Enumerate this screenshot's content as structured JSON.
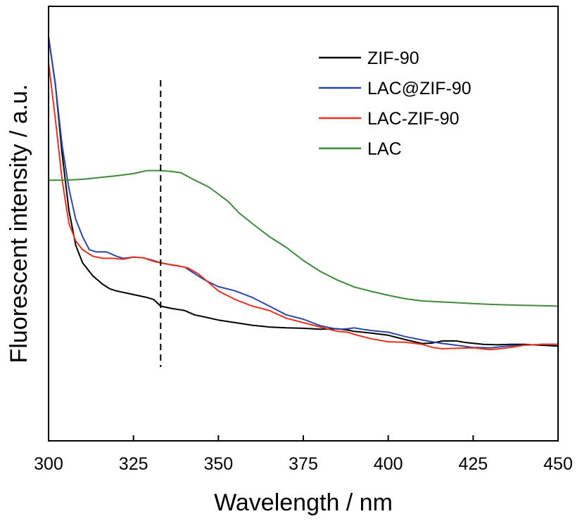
{
  "chart_data": {
    "type": "line",
    "xlabel": "Wavelength / nm",
    "ylabel": "Fluorescent intensity / a.u.",
    "xlim": [
      300,
      450
    ],
    "ylim": [
      0,
      1
    ],
    "x_ticks": [
      300,
      325,
      350,
      375,
      400,
      425,
      450
    ],
    "y_ticks_labeled": false,
    "grid": false,
    "legend_position": "top-right",
    "reference_line": {
      "x": 333,
      "style": "dashed",
      "y_range": [
        0.17,
        0.83
      ]
    },
    "series": [
      {
        "name": "ZIF-90",
        "color": "#000000",
        "points": [
          [
            300,
            0.93
          ],
          [
            302,
            0.82
          ],
          [
            304,
            0.66
          ],
          [
            306,
            0.53
          ],
          [
            308,
            0.45
          ],
          [
            310,
            0.41
          ],
          [
            313,
            0.38
          ],
          [
            316,
            0.36
          ],
          [
            318,
            0.35
          ],
          [
            320,
            0.345
          ],
          [
            323,
            0.34
          ],
          [
            326,
            0.335
          ],
          [
            329,
            0.33
          ],
          [
            331,
            0.325
          ],
          [
            333,
            0.31
          ],
          [
            336,
            0.305
          ],
          [
            340,
            0.3
          ],
          [
            343,
            0.29
          ],
          [
            346,
            0.285
          ],
          [
            350,
            0.278
          ],
          [
            355,
            0.272
          ],
          [
            360,
            0.266
          ],
          [
            365,
            0.262
          ],
          [
            370,
            0.26
          ],
          [
            375,
            0.259
          ],
          [
            380,
            0.257
          ],
          [
            385,
            0.258
          ],
          [
            388,
            0.255
          ],
          [
            390,
            0.252
          ],
          [
            395,
            0.248
          ],
          [
            400,
            0.243
          ],
          [
            405,
            0.233
          ],
          [
            410,
            0.224
          ],
          [
            413,
            0.225
          ],
          [
            416,
            0.23
          ],
          [
            420,
            0.23
          ],
          [
            423,
            0.226
          ],
          [
            428,
            0.222
          ],
          [
            432,
            0.221
          ],
          [
            436,
            0.222
          ],
          [
            440,
            0.222
          ],
          [
            445,
            0.22
          ],
          [
            450,
            0.218
          ]
        ]
      },
      {
        "name": "LAC@ZIF-90",
        "color": "#2c47a8",
        "points": [
          [
            300,
            0.93
          ],
          [
            302,
            0.82
          ],
          [
            304,
            0.68
          ],
          [
            306,
            0.58
          ],
          [
            308,
            0.51
          ],
          [
            310,
            0.47
          ],
          [
            312,
            0.44
          ],
          [
            314,
            0.435
          ],
          [
            317,
            0.435
          ],
          [
            320,
            0.425
          ],
          [
            322,
            0.42
          ],
          [
            325,
            0.423
          ],
          [
            328,
            0.421
          ],
          [
            330,
            0.417
          ],
          [
            333,
            0.41
          ],
          [
            336,
            0.405
          ],
          [
            340,
            0.4
          ],
          [
            343,
            0.385
          ],
          [
            346,
            0.37
          ],
          [
            350,
            0.355
          ],
          [
            355,
            0.345
          ],
          [
            360,
            0.33
          ],
          [
            365,
            0.31
          ],
          [
            370,
            0.29
          ],
          [
            375,
            0.28
          ],
          [
            380,
            0.265
          ],
          [
            385,
            0.257
          ],
          [
            388,
            0.258
          ],
          [
            390,
            0.26
          ],
          [
            393,
            0.256
          ],
          [
            396,
            0.253
          ],
          [
            400,
            0.25
          ],
          [
            405,
            0.24
          ],
          [
            410,
            0.232
          ],
          [
            415,
            0.225
          ],
          [
            420,
            0.22
          ],
          [
            425,
            0.215
          ],
          [
            430,
            0.214
          ],
          [
            435,
            0.218
          ],
          [
            440,
            0.22
          ],
          [
            445,
            0.222
          ],
          [
            450,
            0.222
          ]
        ]
      },
      {
        "name": "LAC-ZIF-90",
        "color": "#e8321f",
        "points": [
          [
            300,
            0.87
          ],
          [
            302,
            0.74
          ],
          [
            304,
            0.6
          ],
          [
            306,
            0.5
          ],
          [
            308,
            0.46
          ],
          [
            310,
            0.44
          ],
          [
            313,
            0.425
          ],
          [
            316,
            0.42
          ],
          [
            319,
            0.42
          ],
          [
            322,
            0.418
          ],
          [
            325,
            0.423
          ],
          [
            328,
            0.421
          ],
          [
            331,
            0.413
          ],
          [
            334,
            0.408
          ],
          [
            338,
            0.403
          ],
          [
            341,
            0.398
          ],
          [
            344,
            0.385
          ],
          [
            347,
            0.365
          ],
          [
            350,
            0.345
          ],
          [
            355,
            0.325
          ],
          [
            360,
            0.31
          ],
          [
            365,
            0.3
          ],
          [
            370,
            0.282
          ],
          [
            375,
            0.272
          ],
          [
            380,
            0.262
          ],
          [
            385,
            0.252
          ],
          [
            388,
            0.25
          ],
          [
            390,
            0.245
          ],
          [
            395,
            0.235
          ],
          [
            400,
            0.228
          ],
          [
            405,
            0.227
          ],
          [
            410,
            0.222
          ],
          [
            413,
            0.215
          ],
          [
            416,
            0.212
          ],
          [
            420,
            0.213
          ],
          [
            425,
            0.214
          ],
          [
            430,
            0.21
          ],
          [
            433,
            0.212
          ],
          [
            436,
            0.215
          ],
          [
            440,
            0.22
          ],
          [
            445,
            0.222
          ],
          [
            450,
            0.222
          ]
        ]
      },
      {
        "name": "LAC",
        "color": "#3d8a3a",
        "points": [
          [
            300,
            0.6
          ],
          [
            305,
            0.6
          ],
          [
            310,
            0.602
          ],
          [
            315,
            0.606
          ],
          [
            320,
            0.61
          ],
          [
            325,
            0.615
          ],
          [
            329,
            0.622
          ],
          [
            333,
            0.622
          ],
          [
            336,
            0.62
          ],
          [
            339,
            0.617
          ],
          [
            343,
            0.6
          ],
          [
            347,
            0.585
          ],
          [
            350,
            0.568
          ],
          [
            353,
            0.55
          ],
          [
            356,
            0.525
          ],
          [
            360,
            0.5
          ],
          [
            365,
            0.47
          ],
          [
            370,
            0.445
          ],
          [
            375,
            0.415
          ],
          [
            380,
            0.39
          ],
          [
            385,
            0.37
          ],
          [
            390,
            0.354
          ],
          [
            395,
            0.344
          ],
          [
            400,
            0.335
          ],
          [
            405,
            0.327
          ],
          [
            410,
            0.322
          ],
          [
            415,
            0.32
          ],
          [
            420,
            0.318
          ],
          [
            425,
            0.316
          ],
          [
            430,
            0.314
          ],
          [
            435,
            0.313
          ],
          [
            440,
            0.312
          ],
          [
            445,
            0.311
          ],
          [
            450,
            0.31
          ]
        ]
      }
    ]
  }
}
